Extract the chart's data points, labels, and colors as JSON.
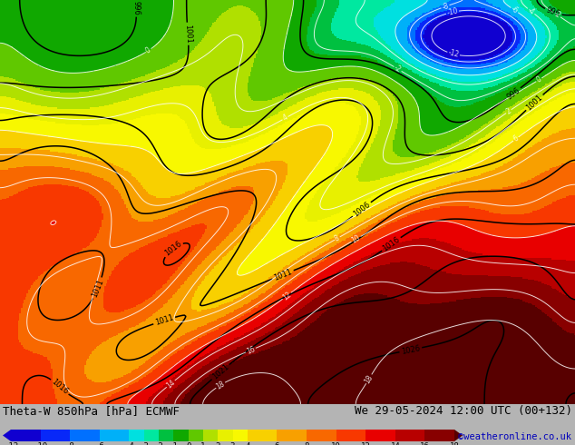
{
  "title_left": "Theta-W 850hPa [hPa] ECMWF",
  "title_right": "We 29-05-2024 12:00 UTC (00+132)",
  "credit": "©weatheronline.co.uk",
  "colorbar_ticks": [
    -12,
    -10,
    -8,
    -6,
    -4,
    -3,
    -2,
    -1,
    0,
    1,
    2,
    3,
    4,
    6,
    8,
    10,
    12,
    14,
    16,
    18
  ],
  "colorbar_colors": [
    "#1000d0",
    "#0828f8",
    "#0070ff",
    "#00b0f8",
    "#00e0e0",
    "#00e8a0",
    "#00c040",
    "#10a800",
    "#60c800",
    "#b0e000",
    "#e8f000",
    "#f8f800",
    "#f8d000",
    "#f8a000",
    "#f86800",
    "#f83800",
    "#e80000",
    "#b80000",
    "#880000",
    "#580000"
  ],
  "bg_color": "#b4b4b4",
  "fig_width": 6.34,
  "fig_height": 4.9,
  "dpi": 100
}
